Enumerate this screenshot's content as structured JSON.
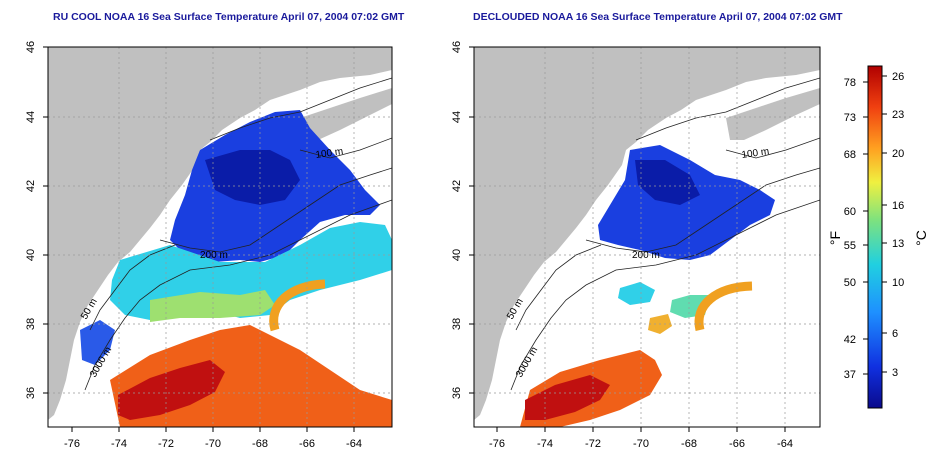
{
  "panels": [
    {
      "id": "left",
      "title": "RU COOL NOAA 16 Sea Surface Temperature April 07, 2004 07:02 GMT",
      "contour_labels": [
        "100 m",
        "200 m",
        "50 m",
        "3000 m"
      ]
    },
    {
      "id": "right",
      "title": "DECLOUDED NOAA 16 Sea Surface Temperature April 07, 2004 07:02 GMT",
      "contour_labels": [
        "100 m",
        "200 m",
        "50 m",
        "3000 m"
      ]
    }
  ],
  "axes": {
    "lon_ticks": [
      "-76",
      "-74",
      "-72",
      "-70",
      "-68",
      "-66",
      "-64"
    ],
    "lat_ticks": [
      "46",
      "44",
      "42",
      "40",
      "38",
      "36"
    ]
  },
  "colorbar": {
    "fahrenheit_ticks": [
      "78",
      "73",
      "68",
      "60",
      "55",
      "50",
      "42",
      "37"
    ],
    "celsius_ticks": [
      "26",
      "23",
      "20",
      "16",
      "13",
      "10",
      "6",
      "3"
    ],
    "unit_f": "°F",
    "unit_c": "°C",
    "colors": [
      "#0a0a8c",
      "#1030e0",
      "#1e90ff",
      "#20d0e0",
      "#7ee27e",
      "#f0f040",
      "#ffa020",
      "#f04010",
      "#b00000"
    ]
  },
  "style": {
    "land_color": "#c0c0c0",
    "title_color": "#1a1a9c"
  }
}
